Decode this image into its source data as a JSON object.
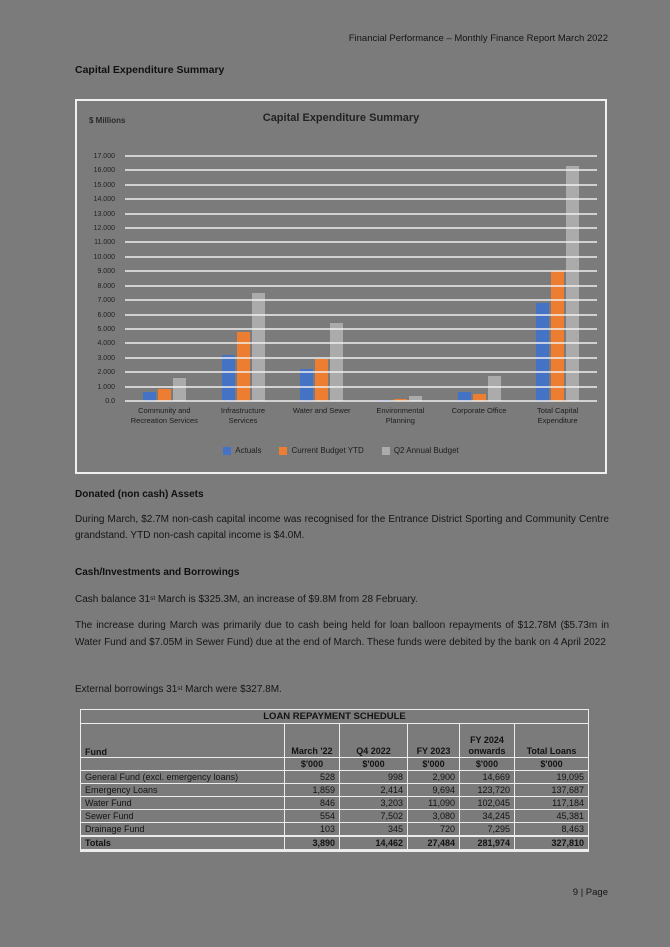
{
  "page": {
    "header": "Financial Performance – Monthly Finance Report March 2022",
    "title": "Capital Expenditure Summary",
    "footer": "9 | Page"
  },
  "chart_data": {
    "type": "bar",
    "title": "Capital Expenditure Summary",
    "axis_unit_label": "$ Millions",
    "categories": [
      "Community and Recreation Services",
      "Infrastructure Services",
      "Water and Sewer",
      "Environmental Planning",
      "Corporate Office",
      "Total Capital Expenditure"
    ],
    "series": [
      {
        "name": "Actuals",
        "color": "#4472c4",
        "values": [
          600,
          3200,
          2200,
          30,
          650,
          6800
        ]
      },
      {
        "name": "Current Budget YTD",
        "color": "#ed7d31",
        "values": [
          850,
          4800,
          2900,
          120,
          520,
          9000
        ]
      },
      {
        "name": "Q2 Annual Budget",
        "color": "#ababab",
        "values": [
          1600,
          7500,
          5400,
          350,
          1750,
          16300
        ]
      }
    ],
    "ylim": [
      0,
      17000
    ],
    "ytick_step": 1000,
    "ytick_labels": [
      "0.0",
      "1.000",
      "2.000",
      "3.000",
      "4.000",
      "5.000",
      "6.000",
      "7.000",
      "8.000",
      "9.000",
      "10.000",
      "11.000",
      "12.000",
      "13.000",
      "14.000",
      "15.000",
      "16.000",
      "17.000"
    ],
    "grid": true,
    "legend_position": "bottom"
  },
  "sections": {
    "donated": {
      "heading": "Donated (non cash) Assets",
      "body": "During March, $2.7M non-cash capital income was recognised for the Entrance District Sporting and Community Centre grandstand. YTD non-cash capital income is $4.0M."
    },
    "cash": {
      "heading": "Cash/Investments and Borrowings",
      "p1_pre": "Cash balance 31",
      "p1_sup": "st",
      "p1_post": " March is $325.3M, an increase of $9.8M from 28 February.",
      "p2": "The increase during March was primarily due to cash being held for loan balloon repayments of $12.78M ($5.73m in Water Fund and $7.05M in Sewer Fund) due at the end of March. These funds were debited by the bank on 4 April 2022",
      "p3_pre": "External borrowings 31",
      "p3_sup": "st",
      "p3_post": " March were $327.8M."
    }
  },
  "loan_table": {
    "title": "LOAN REPAYMENT SCHEDULE",
    "columns": [
      "Fund",
      "March '22",
      "Q4 2022",
      "FY 2023",
      "FY 2024 onwards",
      "Total Loans"
    ],
    "unit": "$'000",
    "rows": [
      [
        "General Fund (excl. emergency loans)",
        "528",
        "998",
        "2,900",
        "14,669",
        "19,095"
      ],
      [
        "Emergency Loans",
        "1,859",
        "2,414",
        "9,694",
        "123,720",
        "137,687"
      ],
      [
        "Water Fund",
        "846",
        "3,203",
        "11,090",
        "102,045",
        "117,184"
      ],
      [
        "Sewer Fund",
        "554",
        "7,502",
        "3,080",
        "34,245",
        "45,381"
      ],
      [
        "Drainage Fund",
        "103",
        "345",
        "720",
        "7,295",
        "8,463"
      ]
    ],
    "totals": [
      "Totals",
      "3,890",
      "14,462",
      "27,484",
      "281,974",
      "327,810"
    ]
  }
}
